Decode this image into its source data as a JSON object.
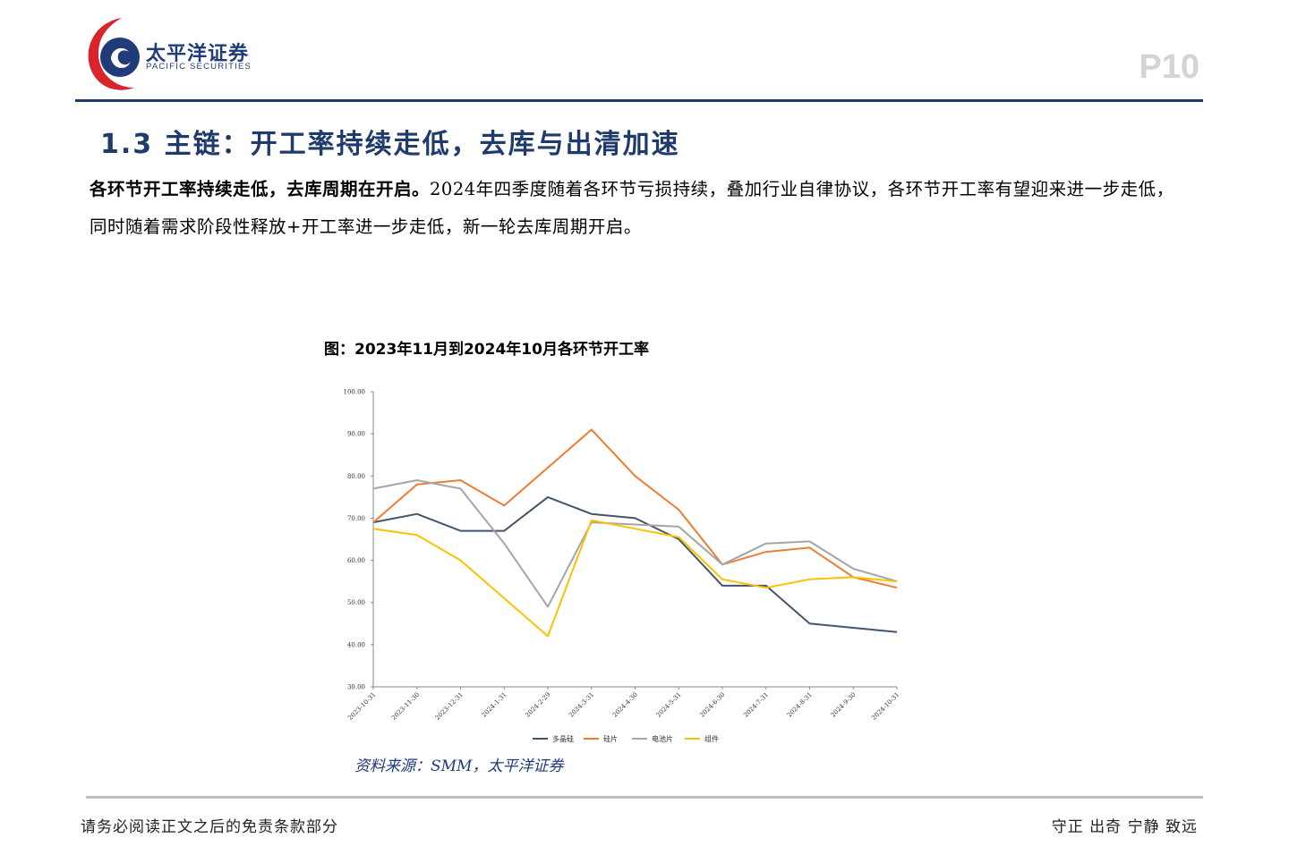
{
  "header": {
    "logo_cn": "太平洋证券",
    "logo_en": "PACIFIC SECURITIES",
    "page_number": "P10"
  },
  "section": {
    "title": "1.3 主链：开工率持续走低，去库与出清加速"
  },
  "body": {
    "bold_lead": "各环节开工率持续走低，去库周期在开启。",
    "text": "2024年四季度随着各环节亏损持续，叠加行业自律协议，各环节开工率有望迎来进一步走低，同时随着需求阶段性释放+开工率进一步走低，新一轮去库周期开启。"
  },
  "figure": {
    "caption": "图：2023年11月到2024年10月各环节开工率",
    "source": "资料来源：SMM，太平洋证券"
  },
  "footer": {
    "left": "请务必阅读正文之后的免责条款部分",
    "right": "守正  出奇  宁静  致远"
  },
  "colors": {
    "brand_navy": "#1f3b6b",
    "brand_red": "#d9242b",
    "series_polysilicon": "#44546a",
    "series_wafer": "#ed7d31",
    "series_cell": "#a5a5a5",
    "series_module": "#ffc000"
  },
  "chart_data": {
    "type": "line",
    "title": "",
    "xlabel": "",
    "ylabel": "",
    "ylim": [
      30,
      100
    ],
    "yticks": [
      "30.00",
      "40.00",
      "50.00",
      "60.00",
      "70.00",
      "80.00",
      "90.00",
      "100.00"
    ],
    "categories": [
      "2023-10-31",
      "2023-11-30",
      "2023-12-31",
      "2024-1-31",
      "2024-2-29",
      "2024-3-31",
      "2024-4-30",
      "2024-5-31",
      "2024-6-30",
      "2024-7-31",
      "2024-8-31",
      "2024-9-30",
      "2024-10-31"
    ],
    "legend_position": "bottom",
    "grid": false,
    "series": [
      {
        "name": "多晶硅",
        "color": "#44546a",
        "values": [
          69,
          71,
          67,
          67,
          75,
          71,
          70,
          65,
          54,
          54,
          45,
          44,
          43
        ]
      },
      {
        "name": "硅片",
        "color": "#ed7d31",
        "values": [
          69,
          78,
          79,
          73,
          82,
          91,
          80,
          72,
          59,
          62,
          63,
          56,
          53.5
        ]
      },
      {
        "name": "电池片",
        "color": "#a5a5a5",
        "values": [
          77,
          79,
          77,
          64,
          49,
          69,
          68.5,
          68,
          59,
          64,
          64.5,
          58,
          55
        ]
      },
      {
        "name": "组件",
        "color": "#ffc000",
        "values": [
          67.5,
          66,
          60,
          51,
          42,
          69.5,
          67.5,
          65.5,
          55.5,
          53.5,
          55.5,
          56,
          55
        ]
      }
    ]
  }
}
